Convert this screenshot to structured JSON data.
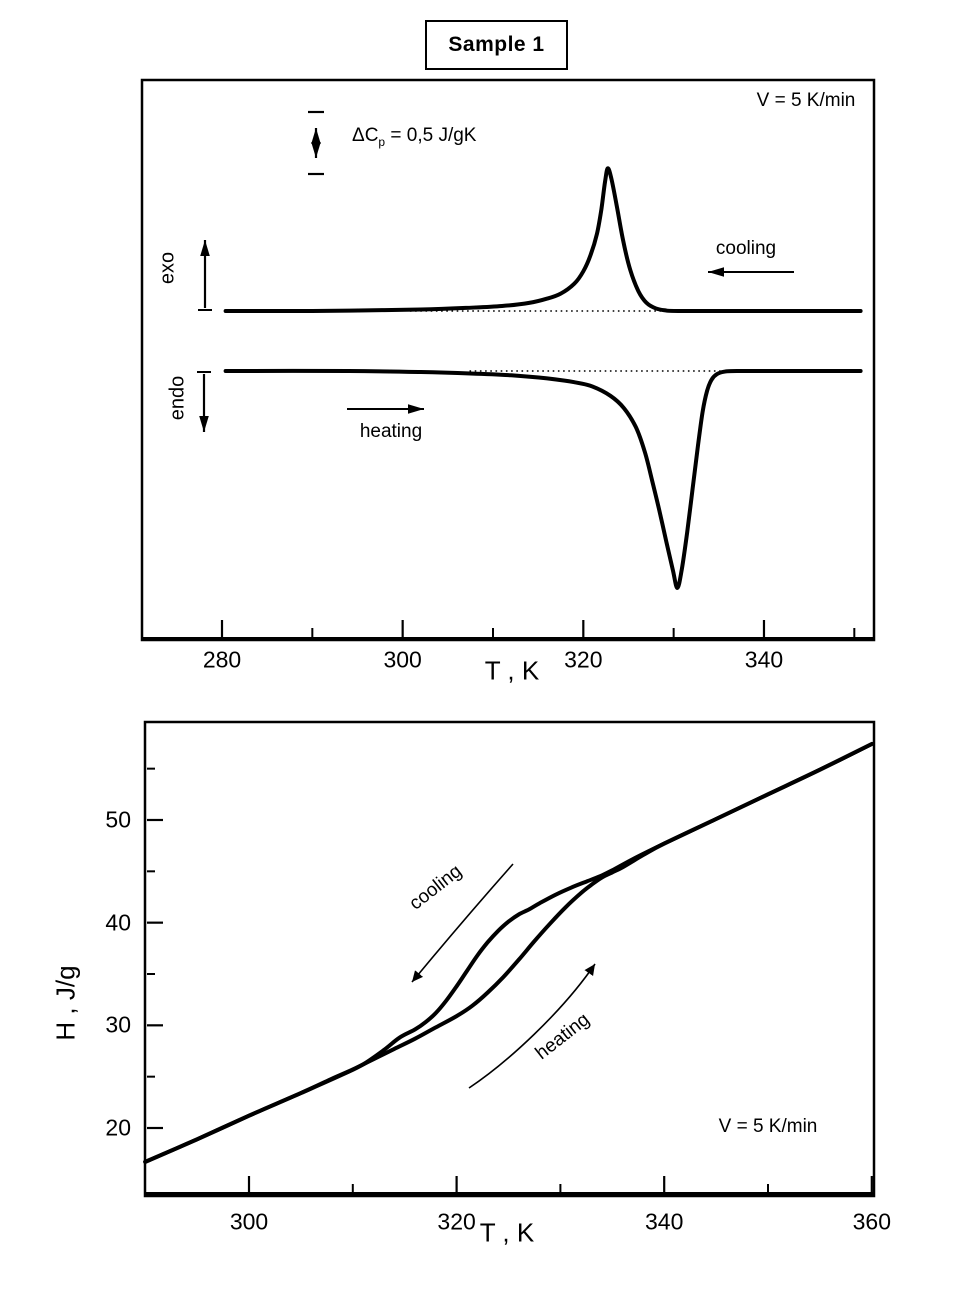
{
  "title": "Sample 1",
  "colors": {
    "ink": "#000000",
    "background": "#ffffff"
  },
  "chart_data": [
    {
      "type": "line",
      "name": "dsc-heat-flow",
      "rate_label": "V = 5 K/min",
      "scale_bar": {
        "prefix": "ΔC",
        "sub": "p",
        "rest": " = 0,5 J/gK",
        "value": 0.5,
        "unit": "J/gK"
      },
      "xlabel": "T , K",
      "x_range": [
        271.5,
        352.6
      ],
      "x_ticks_major": [
        280,
        300,
        320,
        340
      ],
      "x_ticks_minor": [
        290,
        310,
        330,
        350
      ],
      "ylabel_exo": "exo",
      "ylabel_endo": "endo",
      "annotations": {
        "cooling": "cooling",
        "heating": "heating"
      },
      "baseline_dotted_T": {
        "cooling": [
          300.8,
          328.6
        ],
        "heating": [
          307.4,
          335.2
        ]
      },
      "series": [
        {
          "name": "cooling scan (exo peak)",
          "peak_T_K": 322.7,
          "peak_amplitude_J_per_gK": 1.15,
          "points": [
            [
              280.4,
              0
            ],
            [
              290,
              0
            ],
            [
              296,
              0.005
            ],
            [
              302,
              0.012
            ],
            [
              307,
              0.025
            ],
            [
              311,
              0.04
            ],
            [
              314,
              0.065
            ],
            [
              316,
              0.1
            ],
            [
              317.5,
              0.14
            ],
            [
              319,
              0.22
            ],
            [
              320,
              0.32
            ],
            [
              320.8,
              0.45
            ],
            [
              321.5,
              0.62
            ],
            [
              322,
              0.82
            ],
            [
              322.4,
              1.04
            ],
            [
              322.7,
              1.15
            ],
            [
              323.1,
              1.07
            ],
            [
              323.7,
              0.85
            ],
            [
              324.4,
              0.57
            ],
            [
              325.2,
              0.33
            ],
            [
              326.1,
              0.16
            ],
            [
              327,
              0.065
            ],
            [
              328,
              0.022
            ],
            [
              329,
              0.006
            ],
            [
              330.5,
              0
            ],
            [
              338,
              0
            ],
            [
              350.7,
              0
            ]
          ]
        },
        {
          "name": "heating scan (endo peak)",
          "peak_T_K": 330.4,
          "peak_amplitude_J_per_gK": -1.75,
          "points": [
            [
              280.4,
              0
            ],
            [
              294,
              0
            ],
            [
              302,
              -0.008
            ],
            [
              307.5,
              -0.02
            ],
            [
              312,
              -0.035
            ],
            [
              316,
              -0.06
            ],
            [
              319,
              -0.09
            ],
            [
              321,
              -0.125
            ],
            [
              323,
              -0.2
            ],
            [
              324.5,
              -0.3
            ],
            [
              325.8,
              -0.45
            ],
            [
              326.8,
              -0.65
            ],
            [
              327.6,
              -0.88
            ],
            [
              328.4,
              -1.12
            ],
            [
              329.2,
              -1.38
            ],
            [
              329.9,
              -1.6
            ],
            [
              330.4,
              -1.75
            ],
            [
              330.9,
              -1.6
            ],
            [
              331.5,
              -1.3
            ],
            [
              332.1,
              -0.95
            ],
            [
              332.7,
              -0.6
            ],
            [
              333.2,
              -0.33
            ],
            [
              333.7,
              -0.16
            ],
            [
              334.2,
              -0.07
            ],
            [
              334.8,
              -0.025
            ],
            [
              335.6,
              -0.006
            ],
            [
              337,
              0
            ],
            [
              344,
              0
            ],
            [
              350.7,
              0
            ]
          ]
        }
      ]
    },
    {
      "type": "line",
      "name": "enthalpy-hysteresis",
      "xlabel": "T , K",
      "ylabel": "H , J/g",
      "rate_label": "V = 5 K/min",
      "x_range": [
        290,
        360.3
      ],
      "y_range": [
        13,
        59.5
      ],
      "x_ticks_major": [
        300,
        320,
        340,
        360
      ],
      "x_ticks_minor": [
        310,
        330,
        350
      ],
      "y_ticks_major": [
        20,
        30,
        40,
        50
      ],
      "y_ticks_minor": [
        25,
        35,
        45,
        55
      ],
      "annotations": {
        "cooling": "cooling",
        "heating": "heating"
      },
      "series": [
        {
          "name": "cooling",
          "points": [
            [
              360,
              57.4
            ],
            [
              355,
              54.9
            ],
            [
              350,
              52.5
            ],
            [
              345,
              50.1
            ],
            [
              340,
              47.7
            ],
            [
              337,
              46.2
            ],
            [
              335,
              45.1
            ],
            [
              334,
              44.6
            ],
            [
              332.5,
              44
            ],
            [
              331,
              43.4
            ],
            [
              329.5,
              42.7
            ],
            [
              328,
              41.9
            ],
            [
              327,
              41.3
            ],
            [
              326,
              40.8
            ],
            [
              325,
              40.1
            ],
            [
              324,
              39.2
            ],
            [
              323,
              38.1
            ],
            [
              322,
              36.8
            ],
            [
              321,
              35.3
            ],
            [
              320,
              33.8
            ],
            [
              319,
              32.4
            ],
            [
              318,
              31.2
            ],
            [
              317,
              30.3
            ],
            [
              316,
              29.6
            ],
            [
              314.5,
              28.8
            ],
            [
              313,
              27.6
            ],
            [
              311,
              26.2
            ],
            [
              309,
              25.2
            ],
            [
              305,
              23.4
            ],
            [
              300,
              21.2
            ],
            [
              295,
              18.9
            ],
            [
              290,
              16.7
            ]
          ]
        },
        {
          "name": "heating",
          "points": [
            [
              290,
              16.7
            ],
            [
              295,
              18.9
            ],
            [
              300,
              21.2
            ],
            [
              305,
              23.4
            ],
            [
              308,
              24.8
            ],
            [
              310,
              25.7
            ],
            [
              312,
              26.7
            ],
            [
              314,
              27.7
            ],
            [
              316,
              28.7
            ],
            [
              318,
              29.8
            ],
            [
              320,
              30.9
            ],
            [
              321.5,
              31.9
            ],
            [
              323,
              33.2
            ],
            [
              324.5,
              34.7
            ],
            [
              326,
              36.4
            ],
            [
              327.5,
              38.2
            ],
            [
              329,
              39.9
            ],
            [
              330.5,
              41.5
            ],
            [
              332,
              42.9
            ],
            [
              333,
              43.7
            ],
            [
              334,
              44.4
            ],
            [
              335,
              44.9
            ],
            [
              336,
              45.4
            ],
            [
              338,
              46.6
            ],
            [
              340,
              47.7
            ],
            [
              345,
              50.1
            ],
            [
              350,
              52.5
            ],
            [
              355,
              54.9
            ],
            [
              360,
              57.4
            ]
          ]
        }
      ]
    }
  ]
}
